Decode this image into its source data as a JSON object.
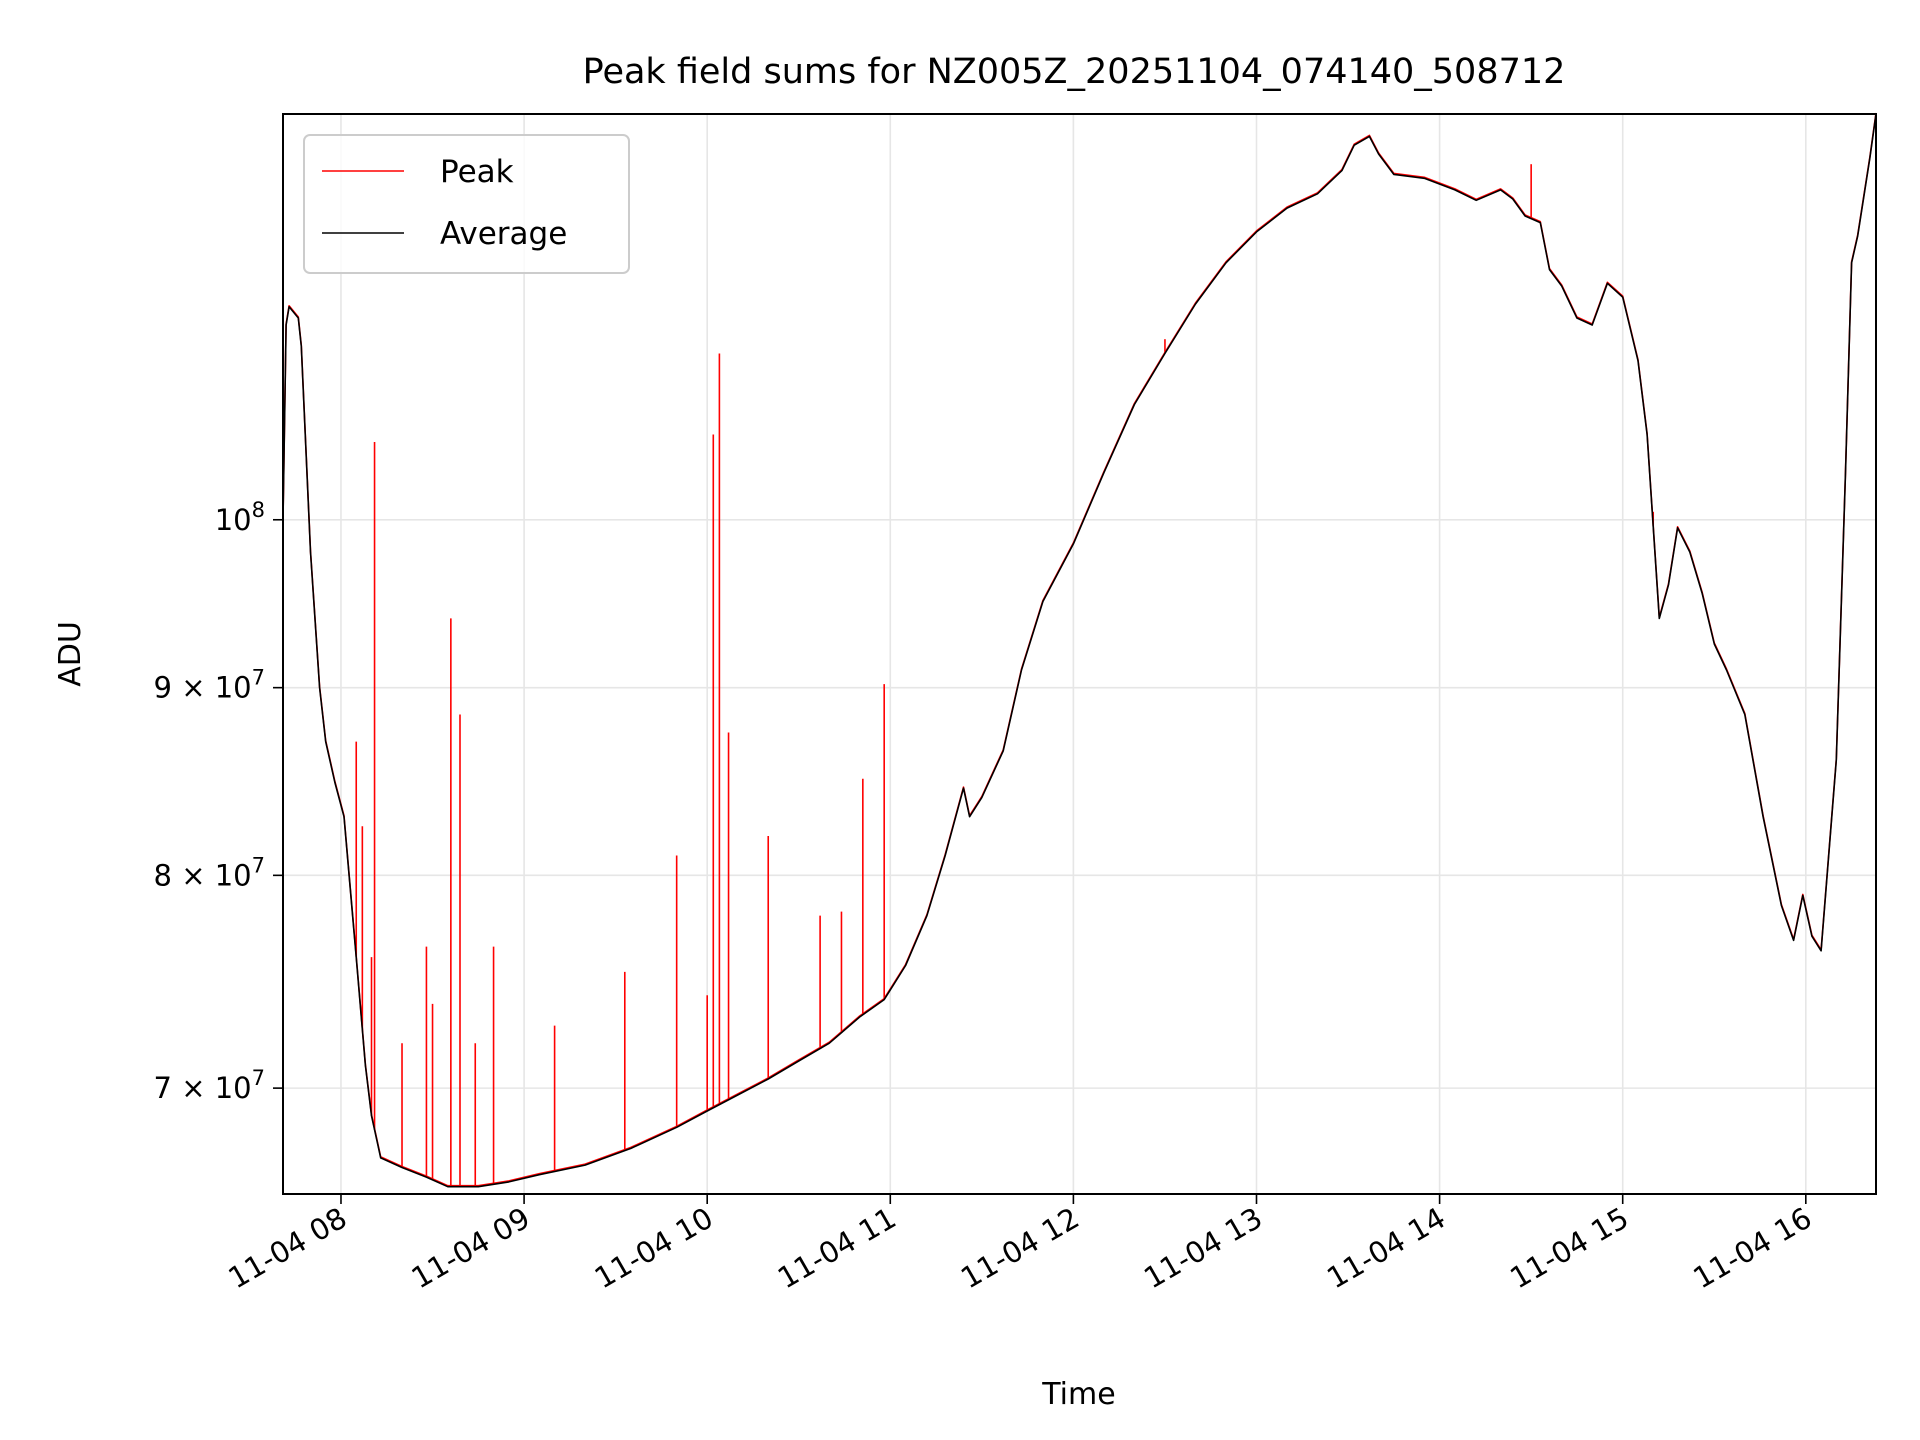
{
  "chart_data": {
    "type": "line",
    "title": "Peak field sums for NZ005Z_20251104_074140_508712",
    "xlabel": "Time",
    "ylabel": "ADU",
    "yscale": "log",
    "xlim": [
      "2025-11-04 07:41",
      "2025-11-04 16:23"
    ],
    "ylim": [
      65500000,
      129000000
    ],
    "x_ticks": [
      "11-04 08",
      "11-04 09",
      "11-04 10",
      "11-04 11",
      "11-04 12",
      "11-04 13",
      "11-04 14",
      "11-04 15",
      "11-04 16"
    ],
    "x_tick_times": [
      "2025-11-04 08:00",
      "2025-11-04 09:00",
      "2025-11-04 10:00",
      "2025-11-04 11:00",
      "2025-11-04 12:00",
      "2025-11-04 13:00",
      "2025-11-04 14:00",
      "2025-11-04 15:00",
      "2025-11-04 16:00"
    ],
    "y_ticks": [
      {
        "value": 70000000,
        "mantissa": "7",
        "base": "10",
        "exp": "7"
      },
      {
        "value": 80000000,
        "mantissa": "8",
        "base": "10",
        "exp": "7"
      },
      {
        "value": 90000000,
        "mantissa": "9",
        "base": "10",
        "exp": "7"
      },
      {
        "value": 100000000,
        "mantissa": "",
        "base": "10",
        "exp": "8"
      }
    ],
    "grid": true,
    "legend": {
      "placement": "top-left"
    },
    "series": [
      {
        "name": "Average",
        "color": "#000000",
        "points": [
          [
            "2025-11-04 07:41",
            100000000
          ],
          [
            "2025-11-04 07:42",
            113000000
          ],
          [
            "2025-11-04 07:43",
            114300000
          ],
          [
            "2025-11-04 07:46",
            113500000
          ],
          [
            "2025-11-04 07:47",
            111500000
          ],
          [
            "2025-11-04 07:50",
            98000000
          ],
          [
            "2025-11-04 07:53",
            90000000
          ],
          [
            "2025-11-04 07:55",
            87000000
          ],
          [
            "2025-11-04 07:58",
            84800000
          ],
          [
            "2025-11-04 08:01",
            83000000
          ],
          [
            "2025-11-04 08:05",
            76000000
          ],
          [
            "2025-11-04 08:08",
            71000000
          ],
          [
            "2025-11-04 08:10",
            68800000
          ],
          [
            "2025-11-04 08:13",
            67000000
          ],
          [
            "2025-11-04 08:20",
            66600000
          ],
          [
            "2025-11-04 08:28",
            66200000
          ],
          [
            "2025-11-04 08:35",
            65800000
          ],
          [
            "2025-11-04 08:45",
            65800000
          ],
          [
            "2025-11-04 08:55",
            66000000
          ],
          [
            "2025-11-04 09:05",
            66300000
          ],
          [
            "2025-11-04 09:20",
            66700000
          ],
          [
            "2025-11-04 09:35",
            67400000
          ],
          [
            "2025-11-04 09:50",
            68300000
          ],
          [
            "2025-11-04 10:00",
            69000000
          ],
          [
            "2025-11-04 10:10",
            69700000
          ],
          [
            "2025-11-04 10:20",
            70400000
          ],
          [
            "2025-11-04 10:30",
            71200000
          ],
          [
            "2025-11-04 10:40",
            72000000
          ],
          [
            "2025-11-04 10:50",
            73200000
          ],
          [
            "2025-11-04 10:58",
            74000000
          ],
          [
            "2025-11-04 11:05",
            75600000
          ],
          [
            "2025-11-04 11:12",
            78000000
          ],
          [
            "2025-11-04 11:18",
            81000000
          ],
          [
            "2025-11-04 11:24",
            84500000
          ],
          [
            "2025-11-04 11:26",
            83000000
          ],
          [
            "2025-11-04 11:30",
            84000000
          ],
          [
            "2025-11-04 11:37",
            86500000
          ],
          [
            "2025-11-04 11:43",
            91000000
          ],
          [
            "2025-11-04 11:50",
            95000000
          ],
          [
            "2025-11-04 12:00",
            98500000
          ],
          [
            "2025-11-04 12:10",
            103000000
          ],
          [
            "2025-11-04 12:20",
            107500000
          ],
          [
            "2025-11-04 12:30",
            111000000
          ],
          [
            "2025-11-04 12:40",
            114500000
          ],
          [
            "2025-11-04 12:50",
            117500000
          ],
          [
            "2025-11-04 13:00",
            119800000
          ],
          [
            "2025-11-04 13:10",
            121600000
          ],
          [
            "2025-11-04 13:20",
            122700000
          ],
          [
            "2025-11-04 13:28",
            124500000
          ],
          [
            "2025-11-04 13:32",
            126500000
          ],
          [
            "2025-11-04 13:37",
            127200000
          ],
          [
            "2025-11-04 13:40",
            125800000
          ],
          [
            "2025-11-04 13:45",
            124200000
          ],
          [
            "2025-11-04 13:55",
            123900000
          ],
          [
            "2025-11-04 14:05",
            123000000
          ],
          [
            "2025-11-04 14:12",
            122200000
          ],
          [
            "2025-11-04 14:20",
            123000000
          ],
          [
            "2025-11-04 14:24",
            122300000
          ],
          [
            "2025-11-04 14:28",
            121000000
          ],
          [
            "2025-11-04 14:33",
            120500000
          ],
          [
            "2025-11-04 14:36",
            117000000
          ],
          [
            "2025-11-04 14:40",
            115800000
          ],
          [
            "2025-11-04 14:45",
            113500000
          ],
          [
            "2025-11-04 14:50",
            113000000
          ],
          [
            "2025-11-04 14:55",
            116000000
          ],
          [
            "2025-11-04 15:00",
            115000000
          ],
          [
            "2025-11-04 15:05",
            110500000
          ],
          [
            "2025-11-04 15:08",
            105500000
          ],
          [
            "2025-11-04 15:12",
            94000000
          ],
          [
            "2025-11-04 15:15",
            96000000
          ],
          [
            "2025-11-04 15:18",
            99500000
          ],
          [
            "2025-11-04 15:22",
            98000000
          ],
          [
            "2025-11-04 15:26",
            95500000
          ],
          [
            "2025-11-04 15:30",
            92500000
          ],
          [
            "2025-11-04 15:34",
            91000000
          ],
          [
            "2025-11-04 15:40",
            88500000
          ],
          [
            "2025-11-04 15:46",
            83000000
          ],
          [
            "2025-11-04 15:52",
            78500000
          ],
          [
            "2025-11-04 15:56",
            76800000
          ],
          [
            "2025-11-04 15:59",
            79000000
          ],
          [
            "2025-11-04 16:02",
            77000000
          ],
          [
            "2025-11-04 16:05",
            76300000
          ],
          [
            "2025-11-04 16:10",
            86000000
          ],
          [
            "2025-11-04 16:13",
            103000000
          ],
          [
            "2025-11-04 16:15",
            117500000
          ],
          [
            "2025-11-04 16:17",
            119500000
          ],
          [
            "2025-11-04 16:21",
            125500000
          ],
          [
            "2025-11-04 16:23",
            129000000
          ]
        ]
      },
      {
        "name": "Peak",
        "color": "#ff0000",
        "spikes": [
          [
            "2025-11-04 08:05",
            87000000
          ],
          [
            "2025-11-04 08:07",
            82500000
          ],
          [
            "2025-11-04 08:10",
            76000000
          ],
          [
            "2025-11-04 08:11",
            105000000
          ],
          [
            "2025-11-04 08:20",
            72000000
          ],
          [
            "2025-11-04 08:28",
            76500000
          ],
          [
            "2025-11-04 08:30",
            73800000
          ],
          [
            "2025-11-04 08:36",
            94000000
          ],
          [
            "2025-11-04 08:39",
            88500000
          ],
          [
            "2025-11-04 08:44",
            72000000
          ],
          [
            "2025-11-04 08:50",
            76500000
          ],
          [
            "2025-11-04 09:10",
            72800000
          ],
          [
            "2025-11-04 09:33",
            75300000
          ],
          [
            "2025-11-04 09:50",
            81000000
          ],
          [
            "2025-11-04 10:00",
            74200000
          ],
          [
            "2025-11-04 10:02",
            105500000
          ],
          [
            "2025-11-04 10:04",
            111000000
          ],
          [
            "2025-11-04 10:07",
            87500000
          ],
          [
            "2025-11-04 10:20",
            82000000
          ],
          [
            "2025-11-04 10:37",
            78000000
          ],
          [
            "2025-11-04 10:44",
            78200000
          ],
          [
            "2025-11-04 10:51",
            85000000
          ],
          [
            "2025-11-04 10:58",
            90200000
          ],
          [
            "2025-11-04 12:30",
            112000000
          ],
          [
            "2025-11-04 14:30",
            125000000
          ],
          [
            "2025-11-04 15:10",
            100500000
          ]
        ]
      }
    ]
  }
}
